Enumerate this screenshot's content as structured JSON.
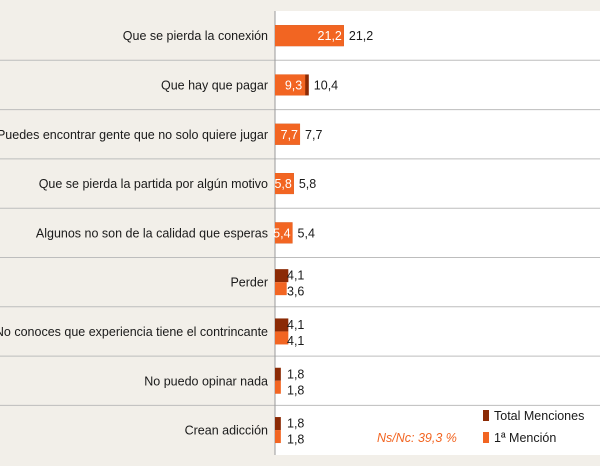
{
  "chart_data": {
    "type": "bar",
    "orientation": "horizontal",
    "categories": [
      "Que se pierda la conexión",
      "Que hay que pagar",
      "Puedes encontrar gente que no solo quiere jugar",
      "Que se pierda la partida por algún motivo",
      "Algunos no son de la calidad que esperas",
      "Perder",
      "No conoces que experiencia tiene el contrincante",
      "No puedo opinar nada",
      "Crean adicción"
    ],
    "series": [
      {
        "name": "Total Menciones",
        "color": "#8b2a05",
        "values": [
          21.2,
          10.4,
          7.7,
          5.8,
          5.4,
          4.1,
          4.1,
          1.8,
          1.8
        ],
        "labels": [
          "21,2",
          "10,4",
          "7,7",
          "5,8",
          "5,4",
          "4,1",
          "4,1",
          "1,8",
          "1,8"
        ]
      },
      {
        "name": "1ª Mención",
        "color": "#f26522",
        "values": [
          21.2,
          9.3,
          7.7,
          5.8,
          5.4,
          3.6,
          4.1,
          1.8,
          1.8
        ],
        "labels": [
          "21,2",
          "9,3",
          "7,7",
          "5,8",
          "5,4",
          "3,6",
          "4,1",
          "1,8",
          "1,8"
        ]
      }
    ],
    "annotation": "Ns/Nc: 39,3 %",
    "annotation_color": "#f26522",
    "legend_position": "bottom-right",
    "grid": false
  }
}
